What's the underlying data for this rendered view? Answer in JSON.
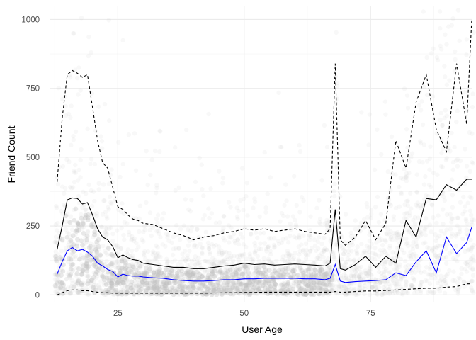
{
  "chart_data": {
    "type": "line",
    "title": "",
    "xlabel": "User Age",
    "ylabel": "Friend Count",
    "xlim": [
      11.5,
      95
    ],
    "ylim": [
      -25,
      1050
    ],
    "x_ticks": [
      25,
      50,
      75
    ],
    "y_ticks": [
      0,
      250,
      500,
      750,
      1000
    ],
    "grid": true,
    "legend": "none",
    "colors": {
      "points": "#bfbfbf",
      "mean": "#000000",
      "median": "#0000ff",
      "quantile": "#000000",
      "grid_major": "#ebebeb",
      "grid_minor": "#f4f4f4"
    },
    "scatter_background": {
      "description_of_marks": "semi-transparent gray points of individual users (age, friend count), densest below 250",
      "alpha": 0.05
    },
    "series": [
      {
        "style": "solid",
        "color": "#000000",
        "x": [
          13,
          14,
          15,
          16,
          17,
          18,
          19,
          20,
          21,
          22,
          23,
          24,
          25,
          26,
          27,
          28,
          29,
          30,
          32,
          34,
          36,
          38,
          40,
          42,
          44,
          46,
          48,
          50,
          52,
          54,
          56,
          58,
          60,
          62,
          64,
          66,
          67,
          68,
          69,
          70,
          72,
          74,
          76,
          78,
          80,
          82,
          84,
          86,
          88,
          90,
          92,
          94,
          95
        ],
        "y": [
          165,
          250,
          345,
          352,
          350,
          330,
          335,
          290,
          240,
          210,
          200,
          175,
          135,
          145,
          135,
          128,
          125,
          115,
          110,
          105,
          100,
          100,
          95,
          95,
          100,
          105,
          108,
          115,
          110,
          112,
          108,
          110,
          112,
          110,
          108,
          105,
          115,
          310,
          95,
          90,
          110,
          140,
          100,
          140,
          115,
          270,
          210,
          350,
          345,
          400,
          380,
          420,
          420
        ]
      },
      {
        "style": "solid",
        "color": "#0000ff",
        "x": [
          13,
          14,
          15,
          16,
          17,
          18,
          19,
          20,
          21,
          22,
          23,
          24,
          25,
          26,
          27,
          28,
          29,
          30,
          32,
          34,
          36,
          38,
          40,
          42,
          44,
          46,
          48,
          50,
          52,
          54,
          56,
          58,
          60,
          62,
          64,
          66,
          67,
          68,
          69,
          70,
          72,
          74,
          76,
          78,
          80,
          82,
          84,
          86,
          88,
          90,
          92,
          94,
          95
        ],
        "y": [
          75,
          120,
          160,
          172,
          160,
          165,
          155,
          140,
          115,
          105,
          92,
          85,
          65,
          75,
          70,
          68,
          68,
          65,
          62,
          60,
          55,
          52,
          50,
          50,
          52,
          55,
          55,
          58,
          58,
          60,
          60,
          60,
          60,
          58,
          58,
          55,
          60,
          110,
          50,
          45,
          48,
          50,
          52,
          55,
          80,
          70,
          120,
          160,
          80,
          210,
          150,
          190,
          245
        ]
      },
      {
        "style": "dashed",
        "color": "#000000",
        "x": [
          13,
          14,
          15,
          16,
          17,
          18,
          19,
          20,
          21,
          22,
          23,
          24,
          25,
          26,
          27,
          28,
          29,
          30,
          32,
          34,
          36,
          38,
          40,
          42,
          44,
          46,
          48,
          50,
          52,
          54,
          56,
          58,
          60,
          62,
          64,
          66,
          67,
          68,
          69,
          70,
          72,
          74,
          76,
          78,
          80,
          82,
          84,
          86,
          88,
          90,
          92,
          94,
          95
        ],
        "y": [
          410,
          640,
          800,
          815,
          805,
          790,
          800,
          680,
          560,
          480,
          460,
          390,
          320,
          310,
          290,
          275,
          270,
          260,
          255,
          240,
          225,
          215,
          200,
          210,
          215,
          225,
          230,
          240,
          235,
          240,
          230,
          235,
          240,
          230,
          225,
          220,
          240,
          840,
          200,
          180,
          210,
          270,
          200,
          260,
          560,
          460,
          700,
          800,
          600,
          520,
          840,
          620,
          1000
        ]
      },
      {
        "style": "dashed",
        "color": "#000000",
        "x": [
          13,
          14,
          15,
          16,
          17,
          18,
          19,
          20,
          21,
          22,
          23,
          24,
          25,
          26,
          27,
          28,
          29,
          30,
          32,
          34,
          36,
          38,
          40,
          42,
          44,
          46,
          48,
          50,
          52,
          54,
          56,
          58,
          60,
          62,
          64,
          66,
          67,
          68,
          69,
          70,
          72,
          74,
          76,
          78,
          80,
          82,
          84,
          86,
          88,
          90,
          92,
          94,
          95
        ],
        "y": [
          0,
          8,
          15,
          18,
          18,
          15,
          15,
          12,
          10,
          8,
          8,
          6,
          6,
          6,
          6,
          6,
          6,
          6,
          6,
          6,
          6,
          6,
          6,
          6,
          7,
          8,
          8,
          9,
          9,
          10,
          10,
          10,
          10,
          10,
          10,
          10,
          10,
          12,
          10,
          10,
          12,
          14,
          14,
          16,
          18,
          20,
          22,
          24,
          24,
          28,
          30,
          40,
          40
        ]
      }
    ]
  }
}
